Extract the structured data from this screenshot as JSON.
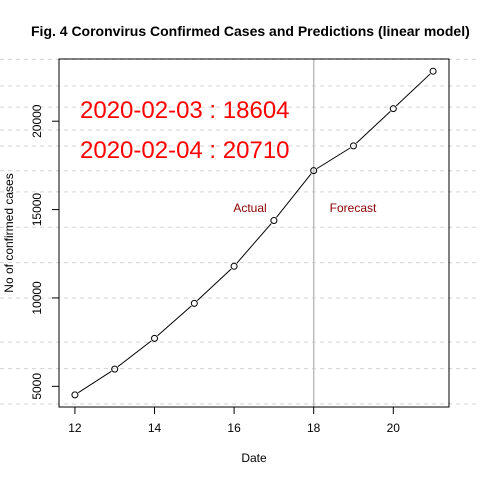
{
  "chart_data": {
    "type": "line",
    "title": "Fig. 4 Coronvirus Confirmed Cases and Predictions (linear model)",
    "xlabel": "Date",
    "ylabel": "No of confirmed cases",
    "x": [
      12,
      13,
      14,
      15,
      16,
      17,
      18,
      19,
      20,
      21
    ],
    "y": [
      4515,
      5974,
      7711,
      9692,
      11791,
      14380,
      17205,
      18604,
      20710,
      22830
    ],
    "xlim": [
      11.6,
      21.4
    ],
    "ylim": [
      3830,
      23520
    ],
    "x_ticks": [
      12,
      14,
      16,
      18,
      20
    ],
    "y_ticks": [
      5000,
      10000,
      15000,
      20000
    ],
    "y_gridlines": [
      4000,
      6000,
      7500,
      10000,
      12000,
      14000,
      16000,
      17200,
      18600,
      19500,
      20800,
      22000,
      23500
    ],
    "split_x": 18,
    "grid": "horizontal dashed",
    "annotations": {
      "pred1": "2020-02-03 : 18604",
      "pred2": "2020-02-04 : 20710",
      "actual": "Actual",
      "forecast": "Forecast"
    },
    "colors": {
      "line": "#000000",
      "grid": "#d3d3d3",
      "split": "#bebebe",
      "annotation_big": "#ff0000",
      "annotation_small": "#8b0000"
    }
  }
}
